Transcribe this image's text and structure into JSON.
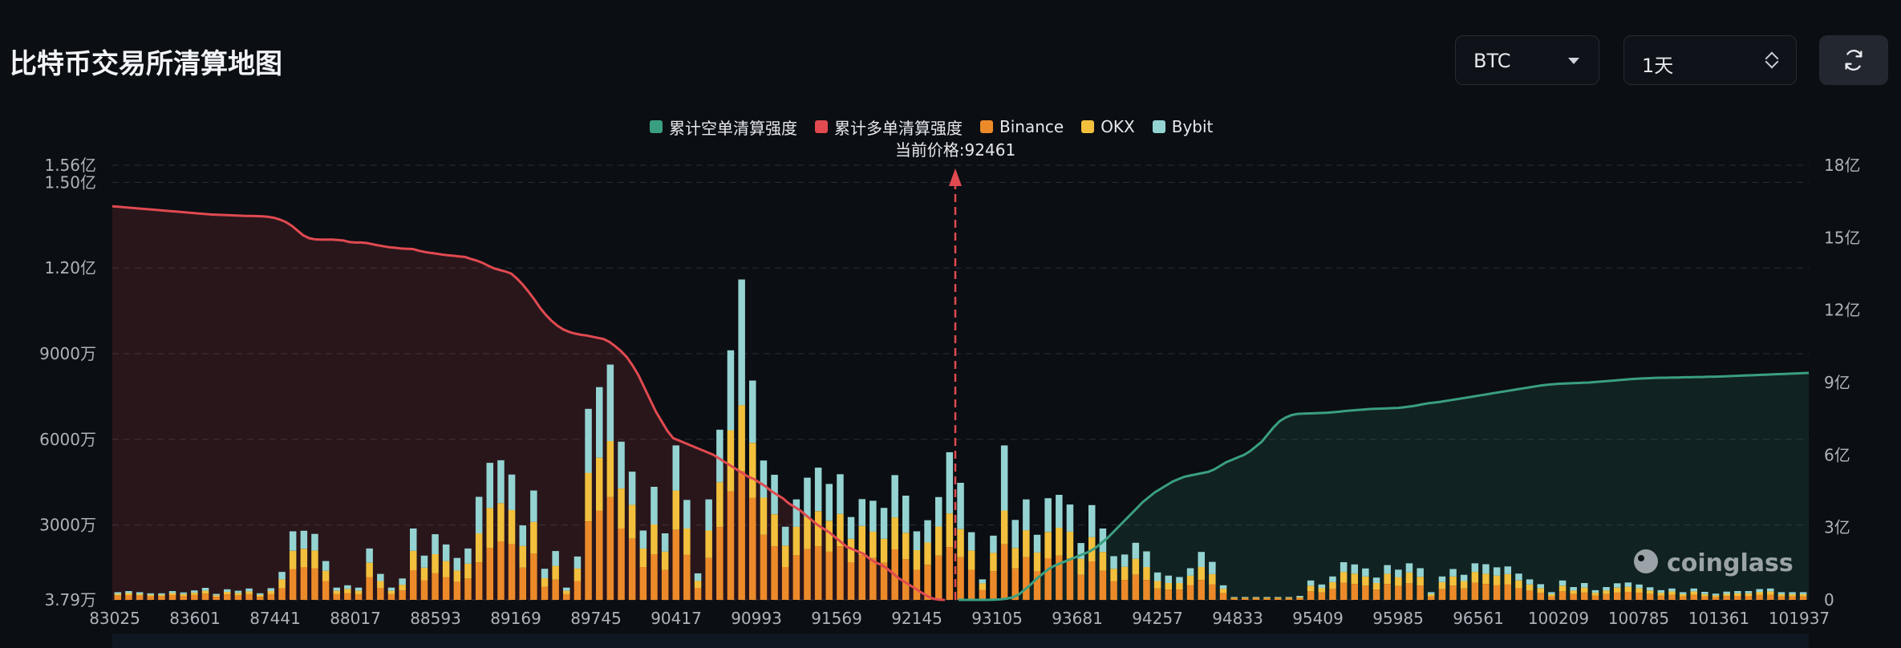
{
  "header": {
    "title": "比特币交易所清算地图"
  },
  "controls": {
    "coin": "BTC",
    "range": "1天",
    "refresh_icon": "refresh-icon"
  },
  "colors": {
    "short_cumulative": "#3a9f80",
    "long_cumulative": "#e04a50",
    "binance": "#ec8a2a",
    "okx": "#f2c03c",
    "bybit": "#94d3d2",
    "background": "#0b0e13"
  },
  "chart_data": {
    "type": "bar",
    "current_price_label": "当前价格:92461",
    "current_price": 92461,
    "x_tick_labels": [
      "83025",
      "83601",
      "87441",
      "88017",
      "88593",
      "89169",
      "89745",
      "90417",
      "90993",
      "91569",
      "92145",
      "93105",
      "93681",
      "94257",
      "94833",
      "95409",
      "95985",
      "96561",
      "100209",
      "100785",
      "101361",
      "101937"
    ],
    "left_axis": {
      "ticks": [
        "3.79万",
        "3000万",
        "6000万",
        "9000万",
        "1.20亿",
        "1.50亿",
        "1.56亿"
      ],
      "range_wan": [
        379,
        15600
      ]
    },
    "right_axis": {
      "ticks": [
        "0",
        "3亿",
        "6亿",
        "9亿",
        "12亿",
        "15亿",
        "18亿"
      ],
      "range_yi": [
        0,
        18
      ]
    },
    "legend": [
      {
        "key": "short",
        "label": "累计空单清算强度"
      },
      {
        "key": "long",
        "label": "累计多单清算强度"
      },
      {
        "key": "binance",
        "label": "Binance"
      },
      {
        "key": "okx",
        "label": "OKX"
      },
      {
        "key": "bybit",
        "label": "Bybit"
      }
    ],
    "grid": true,
    "legend_position": "top-center",
    "units": {
      "bars": "万",
      "cumulative": "亿"
    },
    "bars": {
      "binance": [
        150,
        170,
        150,
        130,
        130,
        170,
        140,
        170,
        220,
        110,
        190,
        160,
        200,
        110,
        210,
        420,
        1080,
        1150,
        1110,
        660,
        200,
        240,
        200,
        800,
        420,
        200,
        330,
        1040,
        690,
        940,
        800,
        630,
        750,
        1310,
        1820,
        2050,
        1950,
        1130,
        1630,
        460,
        710,
        200,
        660,
        2750,
        3120,
        3600,
        2500,
        2150,
        1150,
        1600,
        1050,
        2450,
        1580,
        420,
        1470,
        2550,
        3800,
        4500,
        3580,
        2280,
        1880,
        1150,
        1560,
        1780,
        1880,
        1690,
        1880,
        1320,
        1570,
        1470,
        1300,
        1770,
        1430,
        1050,
        1230,
        1550,
        1850,
        1500,
        1050,
        350,
        1000,
        1950,
        1100,
        1500,
        1000,
        1460,
        1550,
        1460,
        880,
        1350,
        1020,
        660,
        700,
        880,
        700,
        400,
        360,
        360,
        520,
        700,
        550,
        240,
        50,
        50,
        50,
        50,
        50,
        50,
        60,
        300,
        260,
        380,
        600,
        560,
        500,
        360,
        560,
        490,
        580,
        500,
        120,
        380,
        500,
        400,
        600,
        560,
        520,
        550,
        420,
        330,
        250,
        120,
        300,
        200,
        260,
        150,
        200,
        260,
        280,
        250,
        200,
        150,
        180,
        120,
        180,
        120,
        100,
        130,
        140,
        140,
        170,
        180,
        120,
        120,
        120
      ],
      "okx": [
        60,
        70,
        60,
        50,
        50,
        70,
        60,
        80,
        100,
        50,
        90,
        80,
        100,
        60,
        100,
        300,
        640,
        640,
        620,
        360,
        120,
        140,
        120,
        500,
        240,
        120,
        200,
        680,
        440,
        660,
        560,
        400,
        520,
        1020,
        1400,
        1340,
        1200,
        760,
        1100,
        300,
        480,
        120,
        440,
        1700,
        1860,
        1960,
        1400,
        1180,
        650,
        1040,
        640,
        1380,
        920,
        250,
        960,
        1570,
        2140,
        2320,
        1920,
        1300,
        1120,
        750,
        1000,
        1120,
        1230,
        1080,
        1130,
        820,
        1020,
        920,
        840,
        1120,
        920,
        690,
        780,
        1020,
        1180,
        980,
        680,
        230,
        650,
        1180,
        720,
        940,
        660,
        920,
        980,
        930,
        560,
        850,
        660,
        430,
        460,
        560,
        450,
        260,
        230,
        230,
        330,
        450,
        350,
        150,
        30,
        30,
        30,
        30,
        30,
        30,
        40,
        200,
        160,
        240,
        380,
        360,
        320,
        230,
        360,
        310,
        380,
        310,
        80,
        240,
        320,
        260,
        380,
        360,
        330,
        350,
        260,
        210,
        160,
        80,
        200,
        130,
        170,
        100,
        130,
        170,
        180,
        160,
        130,
        100,
        120,
        80,
        120,
        80,
        60,
        80,
        90,
        90,
        110,
        120,
        80,
        80,
        80
      ],
      "bybit": [
        60,
        70,
        60,
        50,
        50,
        70,
        60,
        80,
        100,
        50,
        90,
        80,
        100,
        60,
        100,
        260,
        680,
        630,
        580,
        340,
        110,
        130,
        110,
        500,
        250,
        110,
        220,
        780,
        420,
        700,
        580,
        440,
        530,
        1280,
        1580,
        1500,
        1240,
        720,
        1100,
        330,
        520,
        110,
        420,
        2240,
        2470,
        2680,
        1640,
        1160,
        630,
        1320,
        640,
        1580,
        1000,
        260,
        1090,
        1840,
        2800,
        4400,
        2180,
        1300,
        1380,
        660,
        960,
        1380,
        1520,
        1290,
        1390,
        760,
        940,
        1080,
        1080,
        1480,
        1300,
        660,
        780,
        1030,
        2140,
        1620,
        640,
        140,
        600,
        2280,
        980,
        1080,
        620,
        1180,
        1150,
        950,
        550,
        1120,
        820,
        440,
        430,
        560,
        550,
        300,
        260,
        210,
        260,
        530,
        430,
        120,
        20,
        20,
        20,
        20,
        20,
        20,
        40,
        180,
        120,
        200,
        340,
        320,
        280,
        190,
        300,
        260,
        320,
        300,
        70,
        200,
        260,
        220,
        300,
        330,
        290,
        270,
        240,
        180,
        140,
        70,
        180,
        120,
        160,
        90,
        120,
        150,
        150,
        130,
        110,
        90,
        100,
        70,
        100,
        80,
        60,
        80,
        80,
        80,
        100,
        100,
        70,
        70,
        70
      ]
    },
    "long_cumulative_yi": [
      16.3,
      16.28,
      16.26,
      16.24,
      16.22,
      16.2,
      16.18,
      16.16,
      16.14,
      16.12,
      16.1,
      16.08,
      16.06,
      16.04,
      16.02,
      16.0,
      15.98,
      15.96,
      15.95,
      15.94,
      15.93,
      15.92,
      15.91,
      15.9,
      15.9,
      15.89,
      15.88,
      15.86,
      15.82,
      15.75,
      15.65,
      15.5,
      15.3,
      15.1,
      14.98,
      14.93,
      14.92,
      14.92,
      14.92,
      14.9,
      14.88,
      14.82,
      14.8,
      14.8,
      14.78,
      14.73,
      14.68,
      14.64,
      14.6,
      14.58,
      14.55,
      14.54,
      14.53,
      14.46,
      14.41,
      14.37,
      14.34,
      14.3,
      14.27,
      14.25,
      14.22,
      14.2,
      14.12,
      14.05,
      13.96,
      13.84,
      13.73,
      13.66,
      13.6,
      13.51,
      13.3,
      13.05,
      12.76,
      12.44,
      12.09,
      11.8,
      11.55,
      11.35,
      11.2,
      11.1,
      11.03,
      10.98,
      10.95,
      10.9,
      10.85,
      10.8,
      10.68,
      10.5,
      10.3,
      10.05,
      9.7,
      9.3,
      8.8,
      8.3,
      7.8,
      7.4,
      7.0,
      6.7,
      6.6,
      6.5,
      6.4,
      6.3,
      6.2,
      6.1,
      6.0,
      5.85,
      5.7,
      5.55,
      5.4,
      5.25,
      5.1,
      5.0,
      4.85,
      4.7,
      4.5,
      4.35,
      4.2,
      4.0,
      3.85,
      3.7,
      3.5,
      3.3,
      3.1,
      2.95,
      2.8,
      2.6,
      2.4,
      2.2,
      2.1,
      2.0,
      1.9,
      1.7,
      1.55,
      1.45,
      1.3,
      1.1,
      0.9,
      0.75,
      0.6,
      0.45,
      0.3,
      0.15,
      0.05,
      0.01,
      0.0
    ],
    "short_cumulative_yi": [
      0.0,
      0.0,
      0.0,
      0.0,
      0.0,
      0.0,
      0.01,
      0.02,
      0.05,
      0.1,
      0.2,
      0.4,
      0.6,
      0.85,
      1.05,
      1.25,
      1.4,
      1.5,
      1.6,
      1.7,
      1.8,
      1.9,
      2.0,
      2.15,
      2.35,
      2.55,
      2.8,
      3.05,
      3.3,
      3.55,
      3.8,
      4.05,
      4.25,
      4.45,
      4.6,
      4.75,
      4.9,
      5.0,
      5.1,
      5.15,
      5.2,
      5.25,
      5.3,
      5.4,
      5.55,
      5.7,
      5.8,
      5.9,
      6.0,
      6.15,
      6.35,
      6.55,
      6.85,
      7.15,
      7.4,
      7.55,
      7.65,
      7.7,
      7.71,
      7.72,
      7.73,
      7.74,
      7.75,
      7.77,
      7.79,
      7.82,
      7.84,
      7.86,
      7.88,
      7.9,
      7.91,
      7.92,
      7.93,
      7.94,
      7.95,
      7.98,
      8.01,
      8.05,
      8.1,
      8.14,
      8.17,
      8.2,
      8.24,
      8.28,
      8.32,
      8.36,
      8.4,
      8.44,
      8.48,
      8.52,
      8.56,
      8.6,
      8.64,
      8.68,
      8.72,
      8.76,
      8.8,
      8.84,
      8.88,
      8.91,
      8.93,
      8.95,
      8.96,
      8.97,
      8.98,
      8.99,
      9.0,
      9.02,
      9.04,
      9.06,
      9.08,
      9.1,
      9.12,
      9.14,
      9.16,
      9.17,
      9.18,
      9.19,
      9.2,
      9.2,
      9.21,
      9.21,
      9.22,
      9.22,
      9.23,
      9.23,
      9.24,
      9.24,
      9.25,
      9.26,
      9.27,
      9.28,
      9.29,
      9.3,
      9.31,
      9.32,
      9.33,
      9.34,
      9.35,
      9.36,
      9.37,
      9.38,
      9.39,
      9.4
    ]
  },
  "watermark": {
    "brand": "coinglass"
  }
}
